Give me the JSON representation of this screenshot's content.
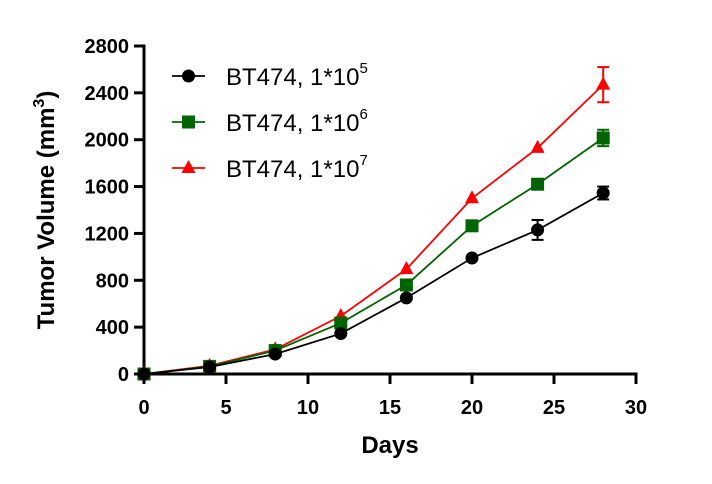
{
  "chart_data": {
    "type": "line",
    "title": "",
    "xlabel": "Days",
    "ylabel": "Tumor Volume (mm",
    "ylabel_sup": "3",
    "ylabel_end": ")",
    "xlim": [
      0,
      30
    ],
    "ylim": [
      0,
      2800
    ],
    "xticks": [
      0,
      5,
      10,
      15,
      20,
      25,
      30
    ],
    "yticks": [
      0,
      400,
      800,
      1200,
      1600,
      2000,
      2400,
      2800
    ],
    "grid": false,
    "legend_position": "top-left",
    "x": [
      0,
      4,
      8,
      12,
      16,
      20,
      24,
      28
    ],
    "series": [
      {
        "name": "BT474, 1*10",
        "name_sup": "5",
        "marker": "circle",
        "color": "#000000",
        "values": [
          0,
          60,
          170,
          345,
          650,
          990,
          1230,
          1545
        ],
        "errors": [
          0,
          5,
          10,
          15,
          20,
          25,
          85,
          55
        ]
      },
      {
        "name": "BT474, 1*10",
        "name_sup": "6",
        "marker": "square",
        "color": "#006400",
        "values": [
          0,
          65,
          200,
          435,
          760,
          1265,
          1620,
          2015
        ],
        "errors": [
          0,
          5,
          10,
          15,
          20,
          25,
          30,
          70
        ]
      },
      {
        "name": "BT474, 1*10",
        "name_sup": "7",
        "marker": "triangle",
        "color": "#ff0000",
        "values": [
          0,
          70,
          210,
          495,
          895,
          1500,
          1930,
          2470
        ],
        "errors": [
          0,
          5,
          10,
          15,
          20,
          25,
          30,
          150
        ]
      }
    ]
  }
}
